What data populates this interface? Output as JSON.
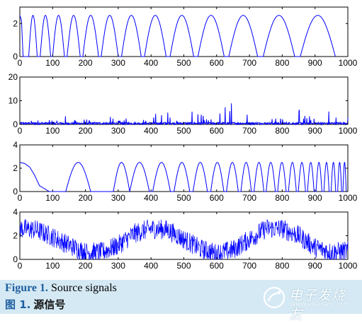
{
  "chart_data": [
    {
      "type": "line",
      "title": "",
      "xlabel": "",
      "ylabel": "",
      "xlim": [
        0,
        1000
      ],
      "ylim": [
        0,
        3
      ],
      "xticks": [
        "0",
        "100",
        "200",
        "300",
        "400",
        "500",
        "600",
        "700",
        "800",
        "900",
        "1000"
      ],
      "yticks": [
        "0",
        "2"
      ],
      "yticks_values": [
        0,
        2
      ],
      "grid": false,
      "color": "#0000ff",
      "series": [
        {
          "description_of_shape": "half-rectified sine arches with increasing width",
          "x": [
            0,
            5,
            10,
            20,
            27,
            40,
            53,
            62,
            78,
            94,
            100,
            118,
            136,
            144,
            164,
            184,
            192,
            216,
            240,
            248,
            274,
            300,
            310,
            340,
            370,
            380,
            413,
            446,
            458,
            494,
            530,
            543,
            583,
            623,
            637,
            681,
            725,
            742,
            790,
            838,
            855,
            908,
            962
          ],
          "y": [
            2.5,
            2.2,
            0,
            0,
            0,
            2.5,
            0,
            0,
            2.5,
            0,
            0,
            2.5,
            0,
            0,
            2.5,
            0,
            0,
            2.5,
            0,
            0,
            2.5,
            0,
            0,
            2.5,
            0,
            0,
            2.5,
            0,
            0,
            2.5,
            0,
            0,
            2.5,
            0,
            0,
            2.5,
            0,
            0,
            2.5,
            0,
            0,
            2.5,
            0
          ]
        }
      ]
    },
    {
      "type": "line",
      "title": "",
      "xlabel": "",
      "ylabel": "",
      "xlim": [
        0,
        1000
      ],
      "ylim": [
        0,
        20
      ],
      "xticks": [
        "0",
        "100",
        "200",
        "300",
        "400",
        "500",
        "600",
        "700",
        "800",
        "900",
        "1000"
      ],
      "yticks": [
        "0",
        "10",
        "20"
      ],
      "yticks_values": [
        0,
        10,
        20
      ],
      "grid": false,
      "color": "#0000ff",
      "series": [
        {
          "description_of_shape": "sparse positive impulsive noise, mostly below 3, peaks near 10",
          "x": [
            0,
            25,
            50,
            75,
            100,
            125,
            150,
            175,
            200,
            225,
            250,
            275,
            300,
            325,
            350,
            375,
            400,
            425,
            450,
            475,
            500,
            525,
            550,
            575,
            600,
            625,
            650,
            675,
            700,
            725,
            750,
            775,
            800,
            825,
            850,
            875,
            900,
            925,
            950,
            975,
            1000
          ],
          "y": [
            0.8,
            1.6,
            2.4,
            1.1,
            3.0,
            0.7,
            6.1,
            1.4,
            2.0,
            1.2,
            0.9,
            3.3,
            1.5,
            2.6,
            1.0,
            1.8,
            3.1,
            5.0,
            6.4,
            1.7,
            2.3,
            5.6,
            4.2,
            1.9,
            3.4,
            6.9,
            10.2,
            2.1,
            6.2,
            4.0,
            1.3,
            3.6,
            2.2,
            1.0,
            6.0,
            2.7,
            4.1,
            5.1,
            7.1,
            1.8,
            2.9
          ]
        }
      ]
    },
    {
      "type": "line",
      "title": "",
      "xlabel": "",
      "ylabel": "",
      "xlim": [
        0,
        1000
      ],
      "ylim": [
        0,
        4
      ],
      "xticks": [
        "0",
        "100",
        "200",
        "300",
        "400",
        "500",
        "600",
        "700",
        "800",
        "900",
        "1000"
      ],
      "yticks": [
        "0",
        "2",
        "4"
      ],
      "yticks_values": [
        0,
        2,
        4
      ],
      "grid": false,
      "color": "#0000ff",
      "series": [
        {
          "description_of_shape": "half-rectified sine arches with decreasing width",
          "x": [
            0,
            15,
            30,
            45,
            60,
            90,
            140,
            178,
            216,
            250,
            285,
            325,
            335,
            365,
            395,
            405,
            432,
            459,
            470,
            494,
            518,
            528,
            550,
            572,
            582,
            602,
            622,
            630,
            648,
            666,
            674,
            690,
            706,
            714,
            729,
            744,
            751,
            765,
            779,
            786,
            799,
            812,
            819,
            831,
            843,
            849,
            860,
            871,
            877,
            887,
            897,
            903,
            912,
            921,
            927,
            935,
            943,
            949,
            956,
            963,
            969,
            975,
            981,
            985,
            990,
            995
          ],
          "y": [
            2.5,
            2.4,
            2.1,
            1.4,
            0.5,
            0,
            0,
            2.5,
            0,
            0,
            0,
            2.5,
            0,
            2.5,
            0,
            0,
            2.5,
            0,
            0,
            2.5,
            0,
            0,
            2.5,
            0,
            0,
            2.5,
            0,
            0,
            2.5,
            0,
            0,
            2.5,
            0,
            0,
            2.5,
            0,
            0,
            2.5,
            0,
            0,
            2.5,
            0,
            0,
            2.5,
            0,
            0,
            2.5,
            0,
            0,
            2.5,
            0,
            0,
            2.5,
            0,
            0,
            2.5,
            0,
            0,
            2.5,
            0,
            0,
            2.5,
            0,
            0,
            2.5,
            0
          ]
        }
      ]
    },
    {
      "type": "line",
      "title": "",
      "xlabel": "",
      "ylabel": "",
      "xlim": [
        0,
        1000
      ],
      "ylim": [
        0,
        4
      ],
      "xticks": [
        "0",
        "100",
        "200",
        "300",
        "400",
        "500",
        "600",
        "700",
        "800",
        "900",
        "1000"
      ],
      "yticks": [
        "0",
        "2",
        "4"
      ],
      "yticks_values": [
        0,
        2,
        4
      ],
      "grid": false,
      "color": "#0000ff",
      "series": [
        {
          "description_of_shape": "noisy sinusoid: slow wave between about 0.3 and 3, period ~400, with dense noise",
          "x": [
            0,
            50,
            100,
            150,
            200,
            250,
            300,
            350,
            400,
            450,
            500,
            550,
            600,
            650,
            700,
            750,
            800,
            850,
            900,
            950,
            1000
          ],
          "y": [
            2.6,
            2.5,
            1.9,
            1.2,
            0.6,
            0.6,
            1.2,
            2.2,
            2.6,
            2.5,
            1.7,
            0.9,
            0.5,
            0.8,
            1.7,
            2.6,
            2.6,
            2.0,
            1.0,
            0.6,
            0.7
          ]
        }
      ]
    }
  ],
  "caption": {
    "en_label": "Figure 1.",
    "en_text": " Source signals",
    "zh_label": "图 1.",
    "zh_text": "源信号"
  },
  "watermark": {
    "name": "电子发烧友",
    "url": "www.elecfans.com"
  },
  "colors": {
    "signal": "#0000ff",
    "caption_bg": "#d5e9f4",
    "caption_label": "#1f5fa0"
  }
}
